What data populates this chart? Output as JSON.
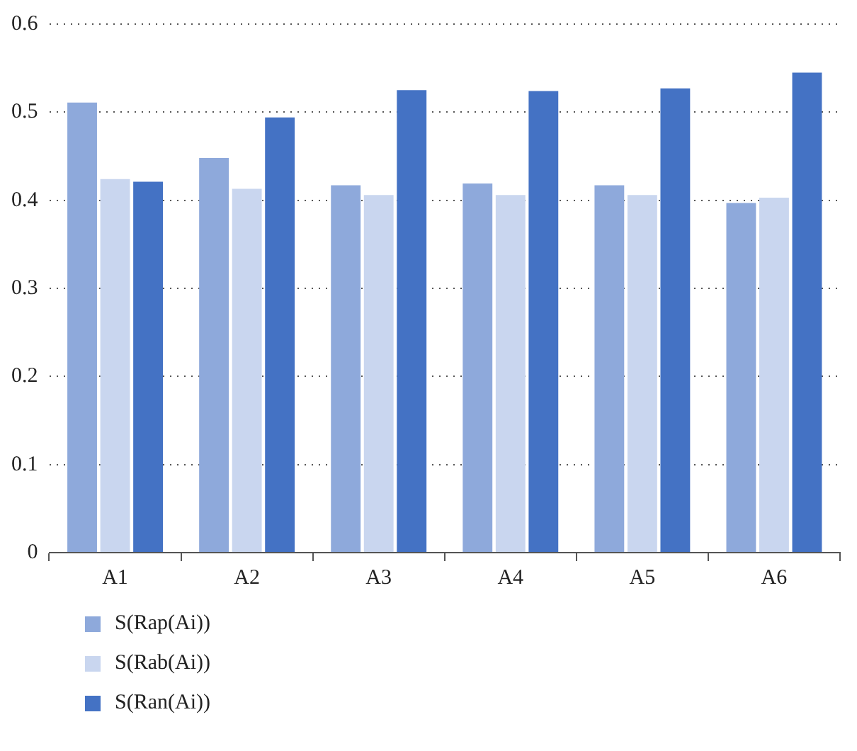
{
  "chart_data": {
    "type": "bar",
    "categories": [
      "A1",
      "A2",
      "A3",
      "A4",
      "A5",
      "A6"
    ],
    "series": [
      {
        "name": "S(Rap(Ai))",
        "color": "#8ea9db",
        "values": [
          0.511,
          0.448,
          0.417,
          0.419,
          0.417,
          0.397
        ]
      },
      {
        "name": "S(Rab(Ai))",
        "color": "#c9d6ef",
        "values": [
          0.424,
          0.413,
          0.406,
          0.406,
          0.406,
          0.403
        ]
      },
      {
        "name": "S(Ran(Ai))",
        "color": "#4472c4",
        "values": [
          0.421,
          0.494,
          0.525,
          0.524,
          0.527,
          0.545
        ]
      }
    ],
    "ylim": [
      0,
      0.6
    ],
    "yticks": [
      0,
      0.1,
      0.2,
      0.3,
      0.4,
      0.5,
      0.6
    ],
    "grid": "y",
    "legend": "bottom left"
  }
}
